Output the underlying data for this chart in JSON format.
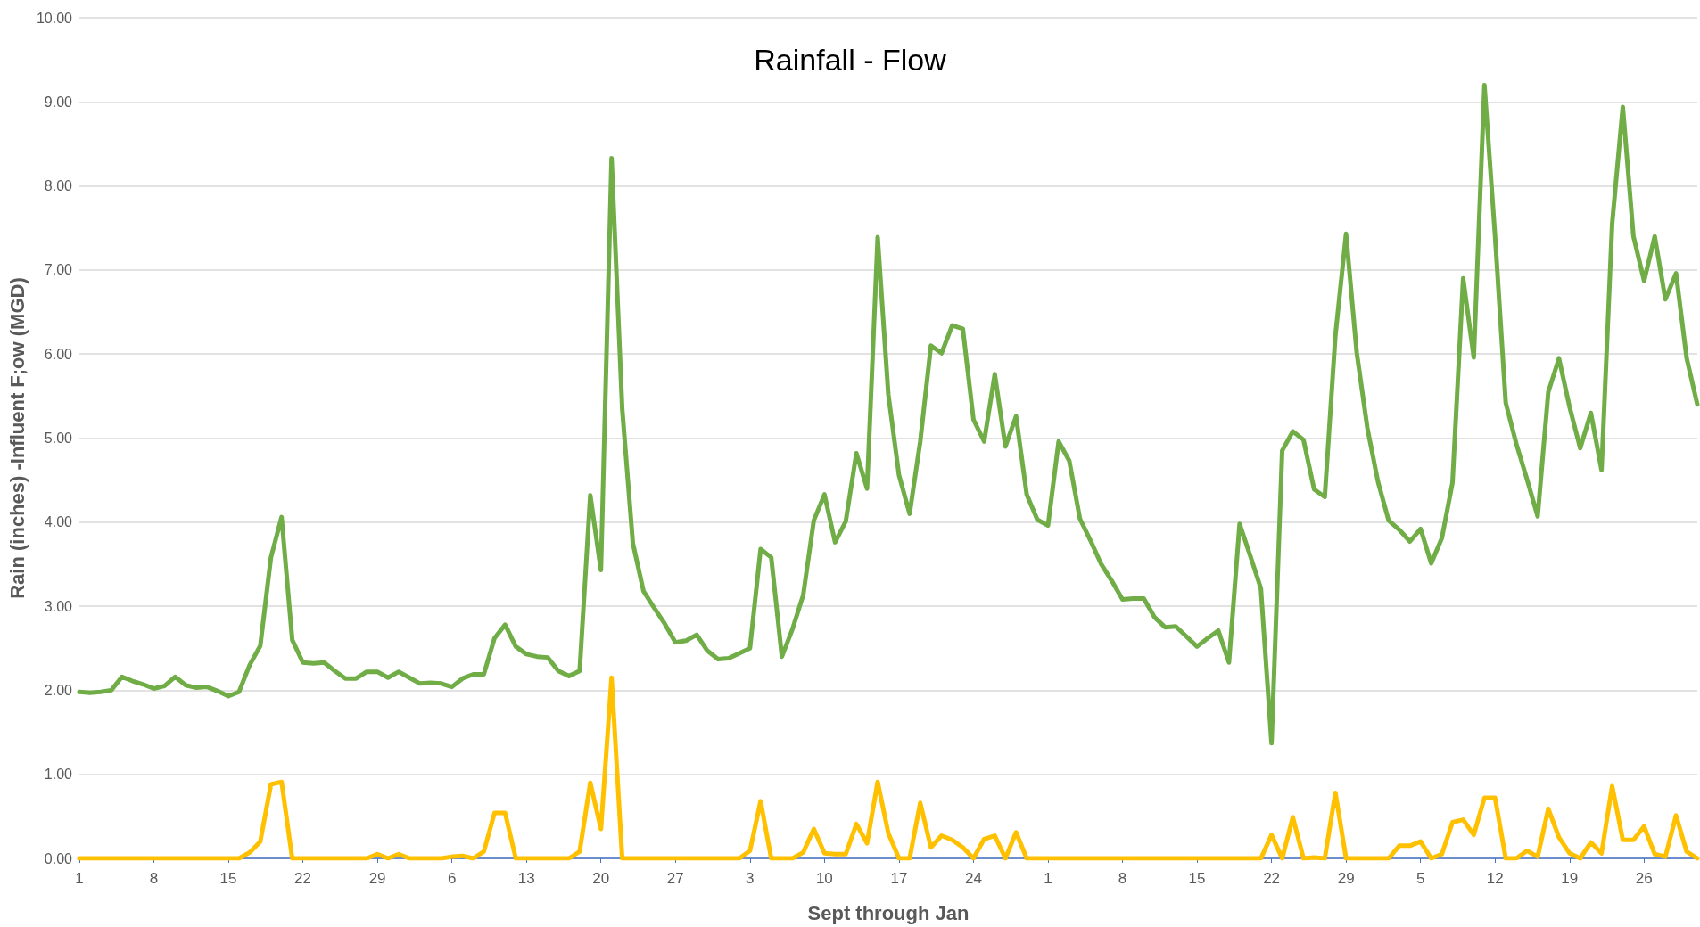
{
  "chart_data": {
    "type": "line",
    "title": "Rainfall - Flow",
    "xlabel": "Sept through Jan",
    "ylabel": "Rain (inches) -Influent F;ow (MGD)",
    "categories": [
      "1",
      null,
      null,
      null,
      null,
      null,
      null,
      "8",
      null,
      null,
      null,
      null,
      null,
      null,
      "15",
      null,
      null,
      null,
      null,
      null,
      null,
      "22",
      null,
      null,
      null,
      null,
      null,
      null,
      "29",
      null,
      null,
      null,
      null,
      null,
      null,
      "6",
      null,
      null,
      null,
      null,
      null,
      null,
      "13",
      null,
      null,
      null,
      null,
      null,
      null,
      "20",
      null,
      null,
      null,
      null,
      null,
      null,
      "27",
      null,
      null,
      null,
      null,
      null,
      null,
      "3",
      null,
      null,
      null,
      null,
      null,
      null,
      "10",
      null,
      null,
      null,
      null,
      null,
      null,
      "17",
      null,
      null,
      null,
      null,
      null,
      null,
      "24",
      null,
      null,
      null,
      null,
      null,
      null,
      "1",
      null,
      null,
      null,
      null,
      null,
      null,
      "8",
      null,
      null,
      null,
      null,
      null,
      null,
      "15",
      null,
      null,
      null,
      null,
      null,
      null,
      "22",
      null,
      null,
      null,
      null,
      null,
      null,
      "29",
      null,
      null,
      null,
      null,
      null,
      null,
      "5",
      null,
      null,
      null,
      null,
      null,
      null,
      "12",
      null,
      null,
      null,
      null,
      null,
      null,
      "19",
      null,
      null,
      null,
      null,
      null,
      null,
      "26",
      null,
      null,
      null,
      null,
      null
    ],
    "series": [
      {
        "color": "#70ad47",
        "values": [
          1.98,
          1.97,
          1.98,
          2.0,
          2.16,
          2.11,
          2.07,
          2.02,
          2.05,
          2.16,
          2.06,
          2.03,
          2.04,
          1.99,
          1.93,
          1.98,
          2.3,
          2.53,
          3.58,
          4.06,
          2.6,
          2.33,
          2.32,
          2.33,
          2.23,
          2.14,
          2.14,
          2.22,
          2.22,
          2.15,
          2.22,
          2.15,
          2.08,
          2.09,
          2.08,
          2.04,
          2.14,
          2.19,
          2.19,
          2.62,
          2.78,
          2.52,
          2.43,
          2.4,
          2.39,
          2.23,
          2.17,
          2.23,
          4.32,
          3.43,
          8.33,
          5.35,
          3.75,
          3.18,
          2.98,
          2.79,
          2.57,
          2.59,
          2.66,
          2.47,
          2.37,
          2.38,
          2.44,
          2.5,
          3.68,
          3.58,
          2.4,
          2.73,
          3.13,
          4.02,
          4.33,
          3.76,
          4.01,
          4.82,
          4.4,
          7.39,
          5.52,
          4.56,
          4.1,
          4.96,
          6.1,
          6.01,
          6.34,
          6.3,
          5.22,
          4.96,
          5.76,
          4.9,
          5.26,
          4.33,
          4.03,
          3.96,
          4.96,
          4.73,
          4.04,
          3.78,
          3.5,
          3.3,
          3.08,
          3.09,
          3.09,
          2.87,
          2.75,
          2.76,
          2.64,
          2.52,
          2.62,
          2.71,
          2.33,
          3.98,
          3.6,
          3.21,
          1.37,
          4.85,
          5.08,
          4.98,
          4.39,
          4.3,
          6.22,
          7.43,
          6.02,
          5.12,
          4.48,
          4.02,
          3.91,
          3.77,
          3.92,
          3.51,
          3.81,
          4.47,
          6.9,
          5.96,
          9.2,
          7.4,
          5.42,
          4.93,
          4.51,
          4.07,
          5.55,
          5.95,
          5.37,
          4.88,
          5.3,
          4.62,
          7.55,
          8.94,
          7.4,
          6.87,
          7.4,
          6.65,
          6.96,
          5.95,
          5.4
        ]
      },
      {
        "color": "#ffc000",
        "values": [
          0,
          0,
          0,
          0,
          0,
          0,
          0,
          0,
          0,
          0,
          0,
          0,
          0,
          0,
          0,
          0,
          0.07,
          0.2,
          0.88,
          0.91,
          0,
          0,
          0,
          0,
          0,
          0,
          0,
          0,
          0.05,
          0,
          0.05,
          0,
          0,
          0,
          0,
          0.02,
          0.03,
          0,
          0.08,
          0.54,
          0.54,
          0,
          0,
          0,
          0,
          0,
          0,
          0.08,
          0.9,
          0.35,
          2.15,
          0,
          0,
          0,
          0,
          0,
          0,
          0,
          0,
          0,
          0,
          0,
          0,
          0.09,
          0.68,
          0,
          0,
          0,
          0.07,
          0.35,
          0.06,
          0.05,
          0.05,
          0.41,
          0.18,
          0.91,
          0.3,
          0,
          0,
          0.66,
          0.13,
          0.27,
          0.22,
          0.13,
          0,
          0.23,
          0.27,
          0,
          0.31,
          0,
          0,
          0,
          0,
          0,
          0,
          0,
          0,
          0,
          0,
          0,
          0,
          0,
          0,
          0,
          0,
          0,
          0,
          0,
          0,
          0,
          0,
          0,
          0.28,
          0,
          0.49,
          0,
          0.01,
          0,
          0.78,
          0,
          0,
          0,
          0,
          0,
          0.15,
          0.15,
          0.2,
          0,
          0.05,
          0.43,
          0.46,
          0.28,
          0.72,
          0.72,
          0,
          0,
          0.09,
          0.02,
          0.59,
          0.25,
          0.06,
          0,
          0.19,
          0.06,
          0.86,
          0.22,
          0.22,
          0.38,
          0.05,
          0.02,
          0.51,
          0.08,
          0
        ]
      }
    ],
    "ylim": [
      0,
      10
    ],
    "yticks": [
      {
        "value": 0,
        "label": "0.00"
      },
      {
        "value": 1,
        "label": "1.00"
      },
      {
        "value": 2,
        "label": "2.00"
      },
      {
        "value": 3,
        "label": "3.00"
      },
      {
        "value": 4,
        "label": "4.00"
      },
      {
        "value": 5,
        "label": "5.00"
      },
      {
        "value": 6,
        "label": "6.00"
      },
      {
        "value": 7,
        "label": "7.00"
      },
      {
        "value": 8,
        "label": "8.00"
      },
      {
        "value": 9,
        "label": "9.00"
      },
      {
        "value": 10,
        "label": "10.00"
      }
    ],
    "grid": "y",
    "marker": "none",
    "line_style": "solid"
  }
}
